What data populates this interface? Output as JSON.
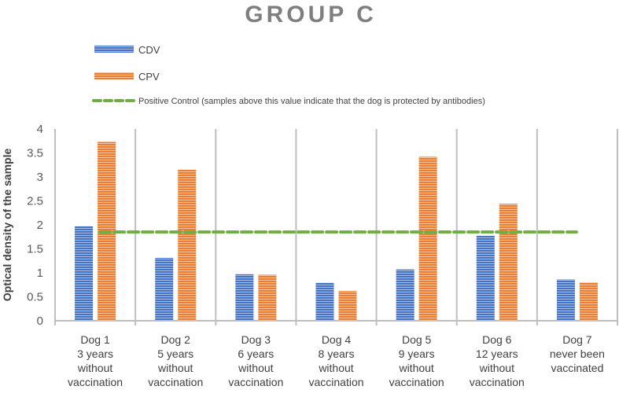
{
  "chart_data": {
    "type": "bar",
    "title": "GROUP C",
    "xlabel": "",
    "ylabel": "Optical density of the sample",
    "ylim": [
      0,
      4
    ],
    "yticks": [
      "0",
      "0.5",
      "1",
      "1.5",
      "2",
      "2.5",
      "3",
      "3.5",
      "4"
    ],
    "grid": "vertical category separators",
    "legend_position": "top-left",
    "categories": [
      [
        "Dog 1",
        "3 years",
        "without",
        "vaccination"
      ],
      [
        "Dog 2",
        "5 years",
        "without",
        "vaccination"
      ],
      [
        "Dog 3",
        "6 years",
        "without",
        "vaccination"
      ],
      [
        "Dog 4",
        "8 years",
        "without",
        "vaccination"
      ],
      [
        "Dog 5",
        "9 years",
        "without",
        "vaccination"
      ],
      [
        "Dog 6",
        "12 years",
        "without",
        "vaccination"
      ],
      [
        "Dog 7",
        "never been",
        "vaccinated"
      ]
    ],
    "series": [
      {
        "name": "CDV",
        "color": "#4472c4",
        "values": [
          1.97,
          1.31,
          0.97,
          0.79,
          1.07,
          1.77,
          0.86
        ]
      },
      {
        "name": "CPV",
        "color": "#ed7d31",
        "values": [
          3.73,
          3.15,
          0.96,
          0.62,
          3.42,
          2.44,
          0.8
        ]
      }
    ],
    "reference_line": {
      "name": "Positive Control (samples above this value indicate that the dog is protected by antibodies)",
      "value": 1.85,
      "color": "#70ad47",
      "style": "dashed"
    }
  }
}
